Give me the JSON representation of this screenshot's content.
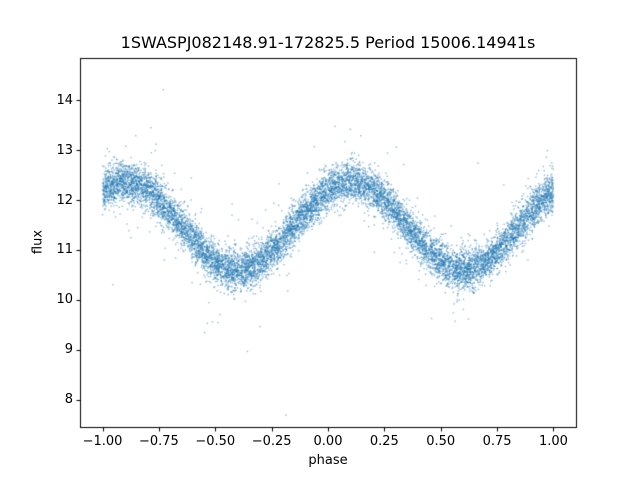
{
  "chart_data": {
    "type": "scatter",
    "title": "1SWASPJ082148.91-172825.5 Period 15006.14941s",
    "xlabel": "phase",
    "ylabel": "flux",
    "xlim": [
      -1.1,
      1.1
    ],
    "ylim": [
      7.45,
      14.85
    ],
    "x_ticks": [
      -1.0,
      -0.75,
      -0.5,
      -0.25,
      0.0,
      0.25,
      0.5,
      0.75,
      1.0
    ],
    "x_tick_labels": [
      "−1.00",
      "−0.75",
      "−0.50",
      "−0.25",
      "0.00",
      "0.25",
      "0.50",
      "0.75",
      "1.00"
    ],
    "y_ticks": [
      8,
      9,
      10,
      11,
      12,
      13,
      14
    ],
    "y_tick_labels": [
      "8",
      "9",
      "10",
      "11",
      "12",
      "13",
      "14"
    ],
    "grid": false,
    "legend": "none",
    "marker_color": "#1f77b4",
    "marker_alpha": 0.5,
    "marker_size_px": 1.4,
    "n_points": 11000,
    "model": {
      "type": "cosine",
      "description": "phase-folded light curve: flux = mean + amplitude * cos(2*pi*(phase - phase_of_max)) + gaussian noise",
      "phase_range": [
        -1.0,
        1.0
      ],
      "mean_flux": 11.48,
      "amplitude": 0.88,
      "phase_of_max": 0.1,
      "period_in_phase": 1.0,
      "noise_sigma": 0.2,
      "outlier_fraction": 0.03,
      "outlier_sigma": 0.55,
      "extreme_outlier_fraction": 0.004,
      "extreme_outlier_sigma": 1.2,
      "peak_flux_band": 12.4,
      "trough_flux_band": 10.6,
      "min_visible_flux": 8.0,
      "max_visible_flux": 14.6
    }
  }
}
